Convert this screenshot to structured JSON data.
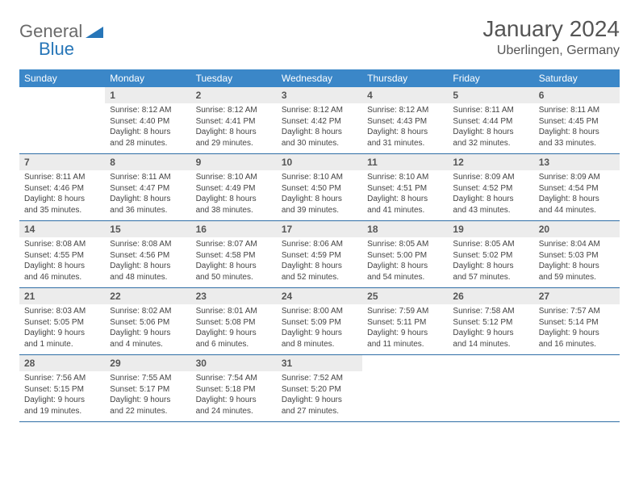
{
  "brand": {
    "part1": "General",
    "part2": "Blue",
    "tri_color": "#2776b8"
  },
  "title": "January 2024",
  "location": "Uberlingen, Germany",
  "colors": {
    "header_bg": "#3b87c8",
    "header_text": "#ffffff",
    "daynum_bg": "#ececec",
    "divider": "#2f6ea6",
    "text": "#444444"
  },
  "weekdays": [
    "Sunday",
    "Monday",
    "Tuesday",
    "Wednesday",
    "Thursday",
    "Friday",
    "Saturday"
  ],
  "weeks": [
    [
      {
        "n": "",
        "sr": "",
        "ss": "",
        "dl": ""
      },
      {
        "n": "1",
        "sr": "Sunrise: 8:12 AM",
        "ss": "Sunset: 4:40 PM",
        "dl": "Daylight: 8 hours and 28 minutes."
      },
      {
        "n": "2",
        "sr": "Sunrise: 8:12 AM",
        "ss": "Sunset: 4:41 PM",
        "dl": "Daylight: 8 hours and 29 minutes."
      },
      {
        "n": "3",
        "sr": "Sunrise: 8:12 AM",
        "ss": "Sunset: 4:42 PM",
        "dl": "Daylight: 8 hours and 30 minutes."
      },
      {
        "n": "4",
        "sr": "Sunrise: 8:12 AM",
        "ss": "Sunset: 4:43 PM",
        "dl": "Daylight: 8 hours and 31 minutes."
      },
      {
        "n": "5",
        "sr": "Sunrise: 8:11 AM",
        "ss": "Sunset: 4:44 PM",
        "dl": "Daylight: 8 hours and 32 minutes."
      },
      {
        "n": "6",
        "sr": "Sunrise: 8:11 AM",
        "ss": "Sunset: 4:45 PM",
        "dl": "Daylight: 8 hours and 33 minutes."
      }
    ],
    [
      {
        "n": "7",
        "sr": "Sunrise: 8:11 AM",
        "ss": "Sunset: 4:46 PM",
        "dl": "Daylight: 8 hours and 35 minutes."
      },
      {
        "n": "8",
        "sr": "Sunrise: 8:11 AM",
        "ss": "Sunset: 4:47 PM",
        "dl": "Daylight: 8 hours and 36 minutes."
      },
      {
        "n": "9",
        "sr": "Sunrise: 8:10 AM",
        "ss": "Sunset: 4:49 PM",
        "dl": "Daylight: 8 hours and 38 minutes."
      },
      {
        "n": "10",
        "sr": "Sunrise: 8:10 AM",
        "ss": "Sunset: 4:50 PM",
        "dl": "Daylight: 8 hours and 39 minutes."
      },
      {
        "n": "11",
        "sr": "Sunrise: 8:10 AM",
        "ss": "Sunset: 4:51 PM",
        "dl": "Daylight: 8 hours and 41 minutes."
      },
      {
        "n": "12",
        "sr": "Sunrise: 8:09 AM",
        "ss": "Sunset: 4:52 PM",
        "dl": "Daylight: 8 hours and 43 minutes."
      },
      {
        "n": "13",
        "sr": "Sunrise: 8:09 AM",
        "ss": "Sunset: 4:54 PM",
        "dl": "Daylight: 8 hours and 44 minutes."
      }
    ],
    [
      {
        "n": "14",
        "sr": "Sunrise: 8:08 AM",
        "ss": "Sunset: 4:55 PM",
        "dl": "Daylight: 8 hours and 46 minutes."
      },
      {
        "n": "15",
        "sr": "Sunrise: 8:08 AM",
        "ss": "Sunset: 4:56 PM",
        "dl": "Daylight: 8 hours and 48 minutes."
      },
      {
        "n": "16",
        "sr": "Sunrise: 8:07 AM",
        "ss": "Sunset: 4:58 PM",
        "dl": "Daylight: 8 hours and 50 minutes."
      },
      {
        "n": "17",
        "sr": "Sunrise: 8:06 AM",
        "ss": "Sunset: 4:59 PM",
        "dl": "Daylight: 8 hours and 52 minutes."
      },
      {
        "n": "18",
        "sr": "Sunrise: 8:05 AM",
        "ss": "Sunset: 5:00 PM",
        "dl": "Daylight: 8 hours and 54 minutes."
      },
      {
        "n": "19",
        "sr": "Sunrise: 8:05 AM",
        "ss": "Sunset: 5:02 PM",
        "dl": "Daylight: 8 hours and 57 minutes."
      },
      {
        "n": "20",
        "sr": "Sunrise: 8:04 AM",
        "ss": "Sunset: 5:03 PM",
        "dl": "Daylight: 8 hours and 59 minutes."
      }
    ],
    [
      {
        "n": "21",
        "sr": "Sunrise: 8:03 AM",
        "ss": "Sunset: 5:05 PM",
        "dl": "Daylight: 9 hours and 1 minute."
      },
      {
        "n": "22",
        "sr": "Sunrise: 8:02 AM",
        "ss": "Sunset: 5:06 PM",
        "dl": "Daylight: 9 hours and 4 minutes."
      },
      {
        "n": "23",
        "sr": "Sunrise: 8:01 AM",
        "ss": "Sunset: 5:08 PM",
        "dl": "Daylight: 9 hours and 6 minutes."
      },
      {
        "n": "24",
        "sr": "Sunrise: 8:00 AM",
        "ss": "Sunset: 5:09 PM",
        "dl": "Daylight: 9 hours and 8 minutes."
      },
      {
        "n": "25",
        "sr": "Sunrise: 7:59 AM",
        "ss": "Sunset: 5:11 PM",
        "dl": "Daylight: 9 hours and 11 minutes."
      },
      {
        "n": "26",
        "sr": "Sunrise: 7:58 AM",
        "ss": "Sunset: 5:12 PM",
        "dl": "Daylight: 9 hours and 14 minutes."
      },
      {
        "n": "27",
        "sr": "Sunrise: 7:57 AM",
        "ss": "Sunset: 5:14 PM",
        "dl": "Daylight: 9 hours and 16 minutes."
      }
    ],
    [
      {
        "n": "28",
        "sr": "Sunrise: 7:56 AM",
        "ss": "Sunset: 5:15 PM",
        "dl": "Daylight: 9 hours and 19 minutes."
      },
      {
        "n": "29",
        "sr": "Sunrise: 7:55 AM",
        "ss": "Sunset: 5:17 PM",
        "dl": "Daylight: 9 hours and 22 minutes."
      },
      {
        "n": "30",
        "sr": "Sunrise: 7:54 AM",
        "ss": "Sunset: 5:18 PM",
        "dl": "Daylight: 9 hours and 24 minutes."
      },
      {
        "n": "31",
        "sr": "Sunrise: 7:52 AM",
        "ss": "Sunset: 5:20 PM",
        "dl": "Daylight: 9 hours and 27 minutes."
      },
      {
        "n": "",
        "sr": "",
        "ss": "",
        "dl": ""
      },
      {
        "n": "",
        "sr": "",
        "ss": "",
        "dl": ""
      },
      {
        "n": "",
        "sr": "",
        "ss": "",
        "dl": ""
      }
    ]
  ]
}
